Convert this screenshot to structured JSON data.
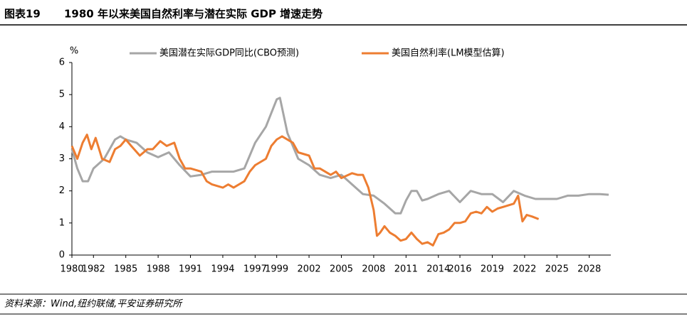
{
  "header": {
    "label": "图表19"
  },
  "source": "资料来源：Wind,纽约联储,平安证券研究所",
  "chart_data": {
    "type": "line",
    "title": "1980 年以来美国自然利率与潜在实际 GDP 增速走势",
    "y_label": "%",
    "xlim": [
      1980,
      2030
    ],
    "xticks": [
      1980,
      1982,
      1985,
      1988,
      1991,
      1994,
      1997,
      1999,
      2002,
      2005,
      2008,
      2011,
      2014,
      2016,
      2019,
      2022,
      2025,
      2028
    ],
    "ylim": [
      0,
      6
    ],
    "yticks": [
      0,
      1,
      2,
      3,
      4,
      5,
      6
    ],
    "legend": "top",
    "series": [
      {
        "name": "美国潜在实际GDP同比(CBO预测)",
        "color": "#a6a6a6",
        "x": [
          1980,
          1980.5,
          1981,
          1981.5,
          1982,
          1983,
          1984,
          1984.5,
          1985,
          1986,
          1987,
          1988,
          1989,
          1990,
          1991,
          1992,
          1993,
          1994,
          1995,
          1996,
          1997,
          1998,
          1999,
          1999.3,
          2000,
          2001,
          2002,
          2003,
          2004,
          2005,
          2006,
          2007,
          2008,
          2009,
          2010,
          2010.5,
          2011,
          2011.5,
          2012,
          2012.5,
          2013,
          2014,
          2015,
          2016,
          2017,
          2018,
          2019,
          2020,
          2021,
          2022,
          2023,
          2024,
          2025,
          2026,
          2027,
          2028,
          2029,
          2029.8
        ],
        "values": [
          3.3,
          2.7,
          2.3,
          2.3,
          2.7,
          3.0,
          3.6,
          3.7,
          3.6,
          3.5,
          3.2,
          3.05,
          3.2,
          2.8,
          2.45,
          2.5,
          2.6,
          2.6,
          2.6,
          2.7,
          3.5,
          4.0,
          4.85,
          4.9,
          3.8,
          3.0,
          2.8,
          2.5,
          2.4,
          2.5,
          2.2,
          1.9,
          1.85,
          1.6,
          1.3,
          1.3,
          1.7,
          2.0,
          2.0,
          1.7,
          1.75,
          1.9,
          2.0,
          1.65,
          2.0,
          1.9,
          1.9,
          1.65,
          2.0,
          1.85,
          1.75,
          1.75,
          1.75,
          1.85,
          1.85,
          1.9,
          1.9,
          1.88
        ]
      },
      {
        "name": "美国自然利率(LM模型估算)",
        "color": "#ed7d31",
        "x": [
          1980,
          1980.5,
          1981,
          1981.4,
          1981.8,
          1982.2,
          1982.8,
          1983.5,
          1984,
          1984.5,
          1985,
          1985.5,
          1986.3,
          1987,
          1987.5,
          1988.2,
          1988.8,
          1989.5,
          1990,
          1990.5,
          1991,
          1992,
          1992.5,
          1993,
          1994,
          1994.5,
          1995,
          1996,
          1996.5,
          1997,
          1998,
          1998.5,
          1999,
          1999.5,
          2000,
          2000.5,
          2001,
          2002,
          2002.5,
          2003,
          2004,
          2004.5,
          2005,
          2006,
          2006.5,
          2007,
          2007.5,
          2008,
          2008.3,
          2008.6,
          2009,
          2009.5,
          2010,
          2010.5,
          2011,
          2011.5,
          2012,
          2012.5,
          2013,
          2013.5,
          2014,
          2014.5,
          2015,
          2015.5,
          2016,
          2016.5,
          2017,
          2017.5,
          2018,
          2018.5,
          2019,
          2019.5,
          2020,
          2021,
          2021.4,
          2021.8,
          2022.2,
          2022.7,
          2023.3
        ],
        "values": [
          3.4,
          3.0,
          3.5,
          3.75,
          3.3,
          3.65,
          3.0,
          2.9,
          3.3,
          3.4,
          3.6,
          3.4,
          3.1,
          3.3,
          3.3,
          3.55,
          3.4,
          3.5,
          3.0,
          2.7,
          2.7,
          2.6,
          2.3,
          2.2,
          2.1,
          2.2,
          2.1,
          2.3,
          2.6,
          2.8,
          3.0,
          3.4,
          3.6,
          3.7,
          3.6,
          3.5,
          3.2,
          3.1,
          2.7,
          2.7,
          2.5,
          2.6,
          2.4,
          2.55,
          2.5,
          2.5,
          2.1,
          1.4,
          0.6,
          0.7,
          0.9,
          0.7,
          0.6,
          0.45,
          0.5,
          0.7,
          0.5,
          0.35,
          0.4,
          0.3,
          0.65,
          0.7,
          0.8,
          1.0,
          1.0,
          1.05,
          1.3,
          1.35,
          1.3,
          1.5,
          1.35,
          1.45,
          1.5,
          1.6,
          1.85,
          1.05,
          1.25,
          1.2,
          1.12
        ]
      }
    ]
  }
}
